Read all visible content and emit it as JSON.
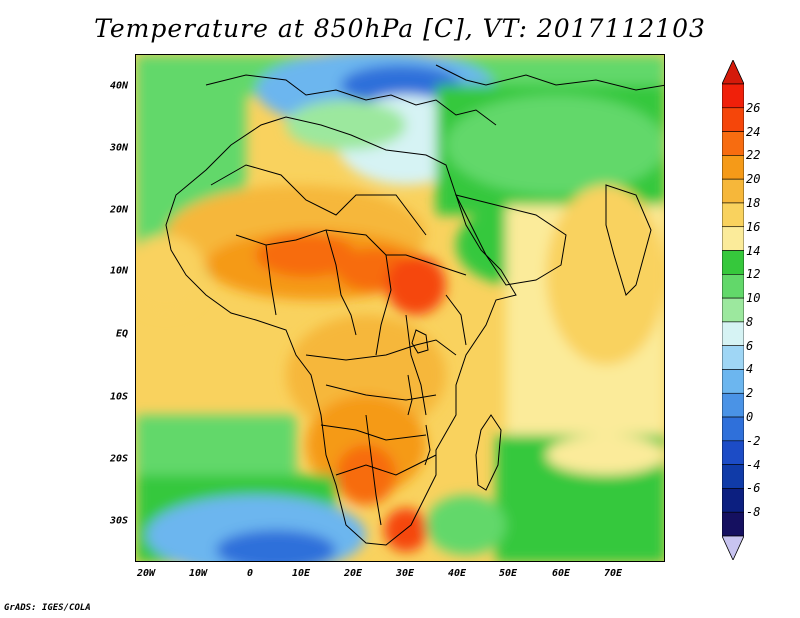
{
  "title": "Temperature at 850hPa [C], VT: 2017112103",
  "credit": "GrADS: IGES/COLA",
  "lat_labels": [
    "40N",
    "30N",
    "20N",
    "10N",
    "EQ",
    "10S",
    "20S",
    "30S"
  ],
  "lon_labels": [
    "20W",
    "10W",
    "0",
    "10E",
    "20E",
    "30E",
    "40E",
    "50E",
    "60E",
    "70E"
  ],
  "colorbar": {
    "labels": [
      "26",
      "24",
      "22",
      "20",
      "18",
      "16",
      "14",
      "12",
      "10",
      "8",
      "6",
      "4",
      "2",
      "0",
      "-2",
      "-4",
      "-6",
      "-8"
    ],
    "colors": [
      "#f0200a",
      "#f5460a",
      "#f76c10",
      "#f59a18",
      "#f6b73a",
      "#f9d25e",
      "#fbeb9a",
      "#36c83c",
      "#62d86a",
      "#9ce89e",
      "#d6f3f4",
      "#9fd6f5",
      "#6cb6ef",
      "#4a93e6",
      "#2f70da",
      "#1c4cc6",
      "#103ba8",
      "#0c1f80",
      "#151060"
    ],
    "top_arrow_color": "#d41a0a",
    "bottom_arrow_color": "#c8c4f0"
  },
  "map_extent": {
    "lon": [
      -22,
      80
    ],
    "lat": [
      -37,
      45
    ]
  }
}
